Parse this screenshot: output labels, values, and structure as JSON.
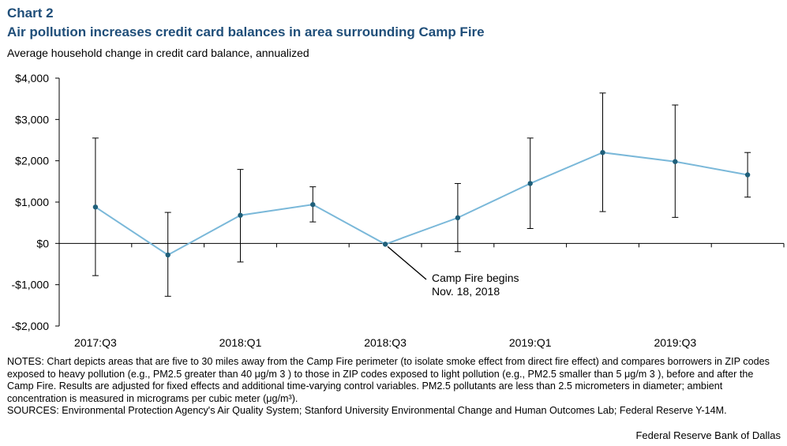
{
  "header": {
    "chart_label": "Chart 2",
    "title": "Air pollution increases credit card balances in area surrounding Camp Fire",
    "subtitle": "Average household change in credit card balance, annualized"
  },
  "footer": {
    "notes": "NOTES: Chart depicts areas that are five to 30 miles away from the Camp Fire perimeter (to isolate smoke effect from direct fire effect) and compares borrowers in ZIP codes exposed to heavy pollution (e.g., PM2.5 greater than 40 μg/m 3 ) to those in ZIP codes exposed to light pollution (e.g., PM2.5 smaller than 5 μg/m 3 ), before and after the Camp Fire. Results are adjusted for fixed effects and additional time-varying control variables. PM2.5 pollutants are less than 2.5 micrometers in diameter; ambient concentration is measured in micrograms per cubic meter (μg/m³).",
    "sources": "SOURCES: Environmental Protection Agency's Air Quality System; Stanford University Environmental Change and Human Outcomes Lab; Federal Reserve Y-14M.",
    "credit": "Federal Reserve Bank of Dallas"
  },
  "chart_data": {
    "type": "line",
    "x": [
      "2017:Q3",
      "2017:Q4",
      "2018:Q1",
      "2018:Q2",
      "2018:Q3",
      "2018:Q4",
      "2019:Q1",
      "2019:Q2",
      "2019:Q3",
      "2019:Q4"
    ],
    "x_tick_labels": [
      "2017:Q3",
      "",
      "2018:Q1",
      "",
      "2018:Q3",
      "",
      "2019:Q1",
      "",
      "2019:Q3",
      ""
    ],
    "series": [
      {
        "values": [
          880,
          -280,
          680,
          940,
          -20,
          620,
          1450,
          2200,
          1980,
          1660
        ],
        "error_low": [
          -780,
          -1280,
          -450,
          520,
          -20,
          -200,
          360,
          770,
          630,
          1120
        ],
        "error_high": [
          2550,
          750,
          1790,
          1370,
          -20,
          1450,
          2550,
          3640,
          3350,
          2200
        ],
        "color": "#7ab8d9",
        "marker_color": "#1f5f7a"
      }
    ],
    "y_tick_labels": [
      "$4,000",
      "$3,000",
      "$2,000",
      "$1,000",
      "$0",
      "-$1,000",
      "-$2,000"
    ],
    "y_ticks": [
      4000,
      3000,
      2000,
      1000,
      0,
      -1000,
      -2000
    ],
    "ylim": [
      -2000,
      4000
    ],
    "grid": false,
    "annotation": {
      "line1": "Camp Fire begins",
      "line2": "Nov. 18, 2018",
      "point_index": 4
    }
  }
}
